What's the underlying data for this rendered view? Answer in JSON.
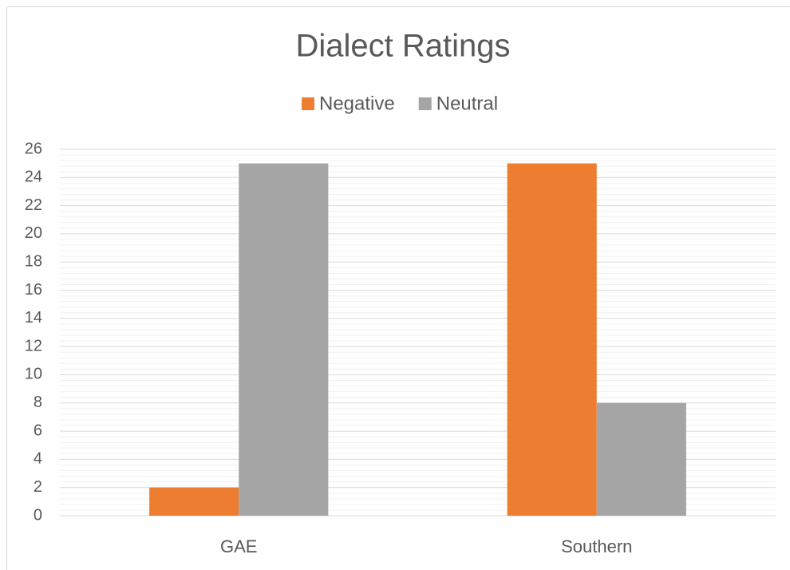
{
  "chart_data": {
    "type": "bar",
    "title": "Dialect Ratings",
    "categories": [
      "GAE",
      "Southern"
    ],
    "series": [
      {
        "name": "Negative",
        "color": "#ed7d31",
        "values": [
          2,
          25
        ]
      },
      {
        "name": "Neutral",
        "color": "#a5a5a5",
        "values": [
          25,
          8
        ]
      }
    ],
    "ylim": [
      0,
      26
    ],
    "yticks": [
      0,
      2,
      4,
      6,
      8,
      10,
      12,
      14,
      16,
      18,
      20,
      22,
      24,
      26
    ],
    "grid": true,
    "legend": "top"
  }
}
